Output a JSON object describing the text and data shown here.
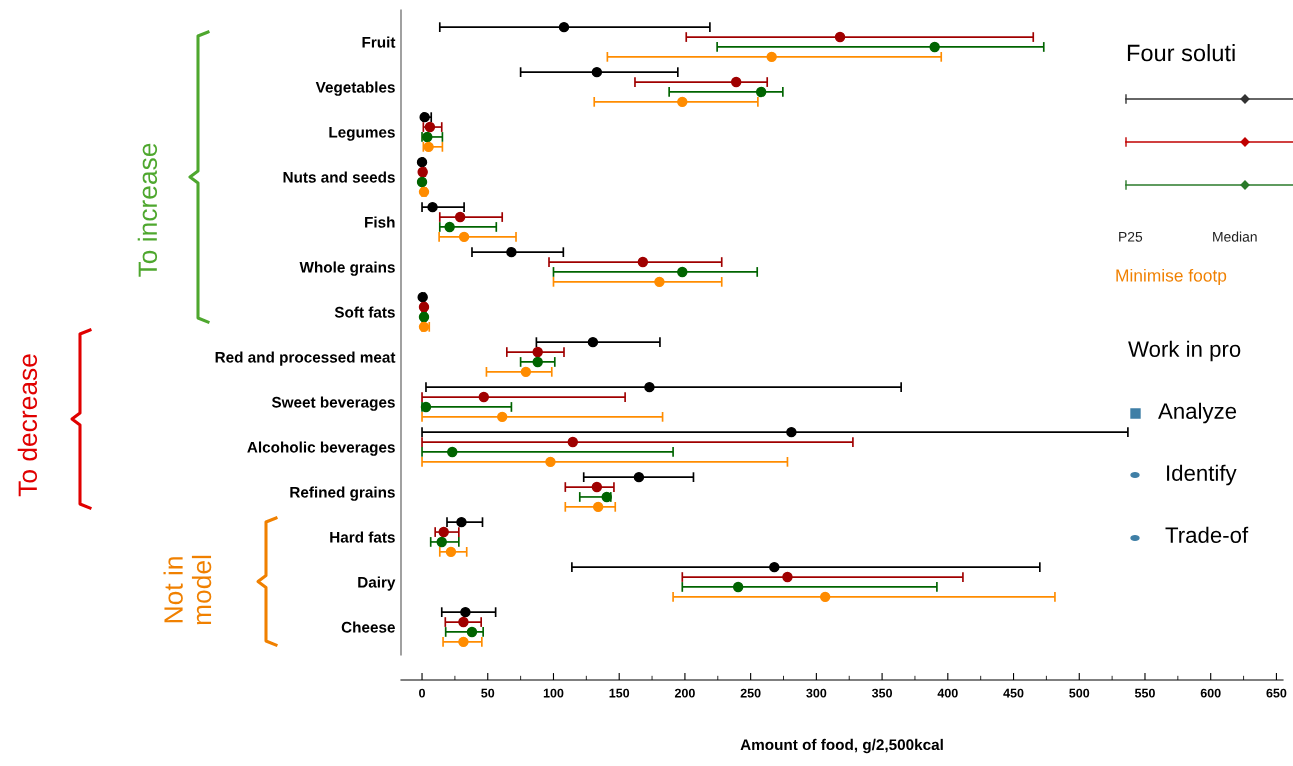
{
  "chart_data": {
    "type": "scatter",
    "orientation": "horizontal",
    "marker": "circle",
    "grid": false,
    "legend": false,
    "xlabel": "Amount of food, g/2,500kcal",
    "categories": [
      "Fruit",
      "Vegetables",
      "Legumes",
      "Nuts and seeds",
      "Fish",
      "Whole grains",
      "Soft fats",
      "Red and processed meat",
      "Sweet beverages",
      "Alcoholic beverages",
      "Refined grains",
      "Hard fats",
      "Dairy",
      "Cheese"
    ],
    "xlim": [
      -16,
      655
    ],
    "xticks": [
      0,
      50,
      100,
      150,
      200,
      250,
      300,
      350,
      400,
      450,
      500,
      550,
      600,
      650
    ],
    "series": [
      {
        "color": "#000000",
        "values": [
          108,
          133,
          2,
          0,
          8,
          68,
          0.5,
          130,
          173,
          281,
          165,
          30,
          268,
          33
        ],
        "errors": [
          [
            13.5,
            219
          ],
          [
            75,
            194.6
          ],
          [
            1,
            7
          ],
          [
            0,
            1
          ],
          [
            0,
            32
          ],
          [
            38,
            107.5
          ],
          [
            0,
            2
          ],
          [
            87,
            181
          ],
          [
            3,
            364.5
          ],
          [
            0,
            537
          ],
          [
            123,
            206.5
          ],
          [
            19,
            46
          ],
          [
            114,
            470
          ],
          [
            15,
            56
          ]
        ]
      },
      {
        "color": "#a00000",
        "values": [
          318,
          239,
          6,
          0.5,
          29,
          168,
          1.5,
          88,
          47,
          114.7,
          133,
          16.5,
          278,
          31.5
        ],
        "errors": [
          [
            201,
            465
          ],
          [
            162,
            262.6
          ],
          [
            1,
            15
          ],
          [
            0,
            2.5
          ],
          [
            13.5,
            61
          ],
          [
            96.6,
            228
          ],
          [
            0,
            3
          ],
          [
            64.5,
            108
          ],
          [
            0,
            154.5
          ],
          [
            0,
            327.8
          ],
          [
            109,
            146
          ],
          [
            10,
            28
          ],
          [
            198,
            411.5
          ],
          [
            17.7,
            45
          ]
        ]
      },
      {
        "color": "#006400",
        "values": [
          390,
          258,
          4,
          0,
          21,
          198,
          1.5,
          88,
          3,
          23,
          140.5,
          15,
          240.5,
          38
        ],
        "errors": [
          [
            224.5,
            473
          ],
          [
            188,
            274.5
          ],
          [
            0,
            15.5
          ],
          [
            0,
            1
          ],
          [
            13.5,
            56.5
          ],
          [
            100,
            255
          ],
          [
            0,
            3
          ],
          [
            75,
            101
          ],
          [
            0,
            68
          ],
          [
            0,
            191
          ],
          [
            120,
            143.6
          ],
          [
            6.6,
            28
          ],
          [
            198,
            391.7
          ],
          [
            18,
            46.5
          ]
        ]
      },
      {
        "color": "#ff8c00",
        "values": [
          266,
          198,
          5,
          1.5,
          32,
          180.6,
          1.5,
          79,
          61,
          97.7,
          134,
          22,
          306.7,
          31.5
        ],
        "errors": [
          [
            141,
            395
          ],
          [
            131,
            255.5
          ],
          [
            1,
            15.5
          ],
          [
            0,
            3
          ],
          [
            13,
            71.5
          ],
          [
            100,
            228
          ],
          [
            0,
            5.5
          ],
          [
            49,
            98.7
          ],
          [
            0,
            183
          ],
          [
            0,
            278
          ],
          [
            109,
            147
          ],
          [
            13.5,
            34
          ],
          [
            191,
            481.5
          ],
          [
            16,
            45.5
          ]
        ]
      }
    ],
    "annotations": [
      "To increase",
      "To decrease",
      "Not in\nmodel",
      "Four soluti",
      "P25",
      "Median",
      "Minimise footp",
      "Work in pro",
      "Analyze",
      "Identify",
      "Trade-of"
    ]
  }
}
